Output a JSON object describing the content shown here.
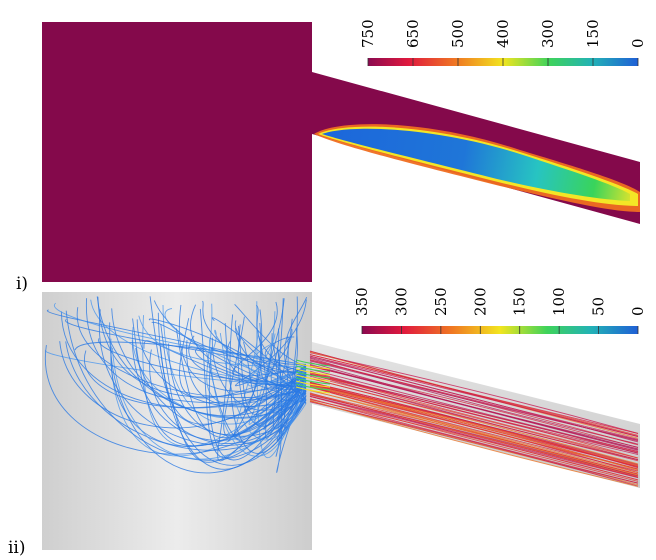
{
  "panels": [
    {
      "label": "i)",
      "colorbar": {
        "ticks": [
          "750",
          "650",
          "500",
          "400",
          "300",
          "150",
          "0"
        ],
        "colors": [
          "#8b0a50",
          "#e0193e",
          "#f07a22",
          "#f2e51f",
          "#3fd35a",
          "#22b2b6",
          "#1f5fd6"
        ]
      },
      "colors": {
        "fluid": "#84094b",
        "core_blue": "#1c66db",
        "core_cyan": "#27c4c2",
        "core_green": "#39d45b",
        "core_yellow": "#f4e626",
        "core_orange": "#ef6e20"
      }
    },
    {
      "label": "ii)",
      "colorbar": {
        "ticks": [
          "350",
          "300",
          "250",
          "200",
          "150",
          "100",
          "50",
          "0"
        ],
        "colors": [
          "#8b0a50",
          "#e0193e",
          "#f07a22",
          "#f2e51f",
          "#3fd35a",
          "#22b2b6",
          "#1f5fd6"
        ]
      },
      "colors": {
        "background": "#d7d7d7",
        "streamline_blue": "#2b79e3",
        "streamline_red": "#d8243f",
        "streamline_orange": "#ee7425"
      }
    }
  ]
}
